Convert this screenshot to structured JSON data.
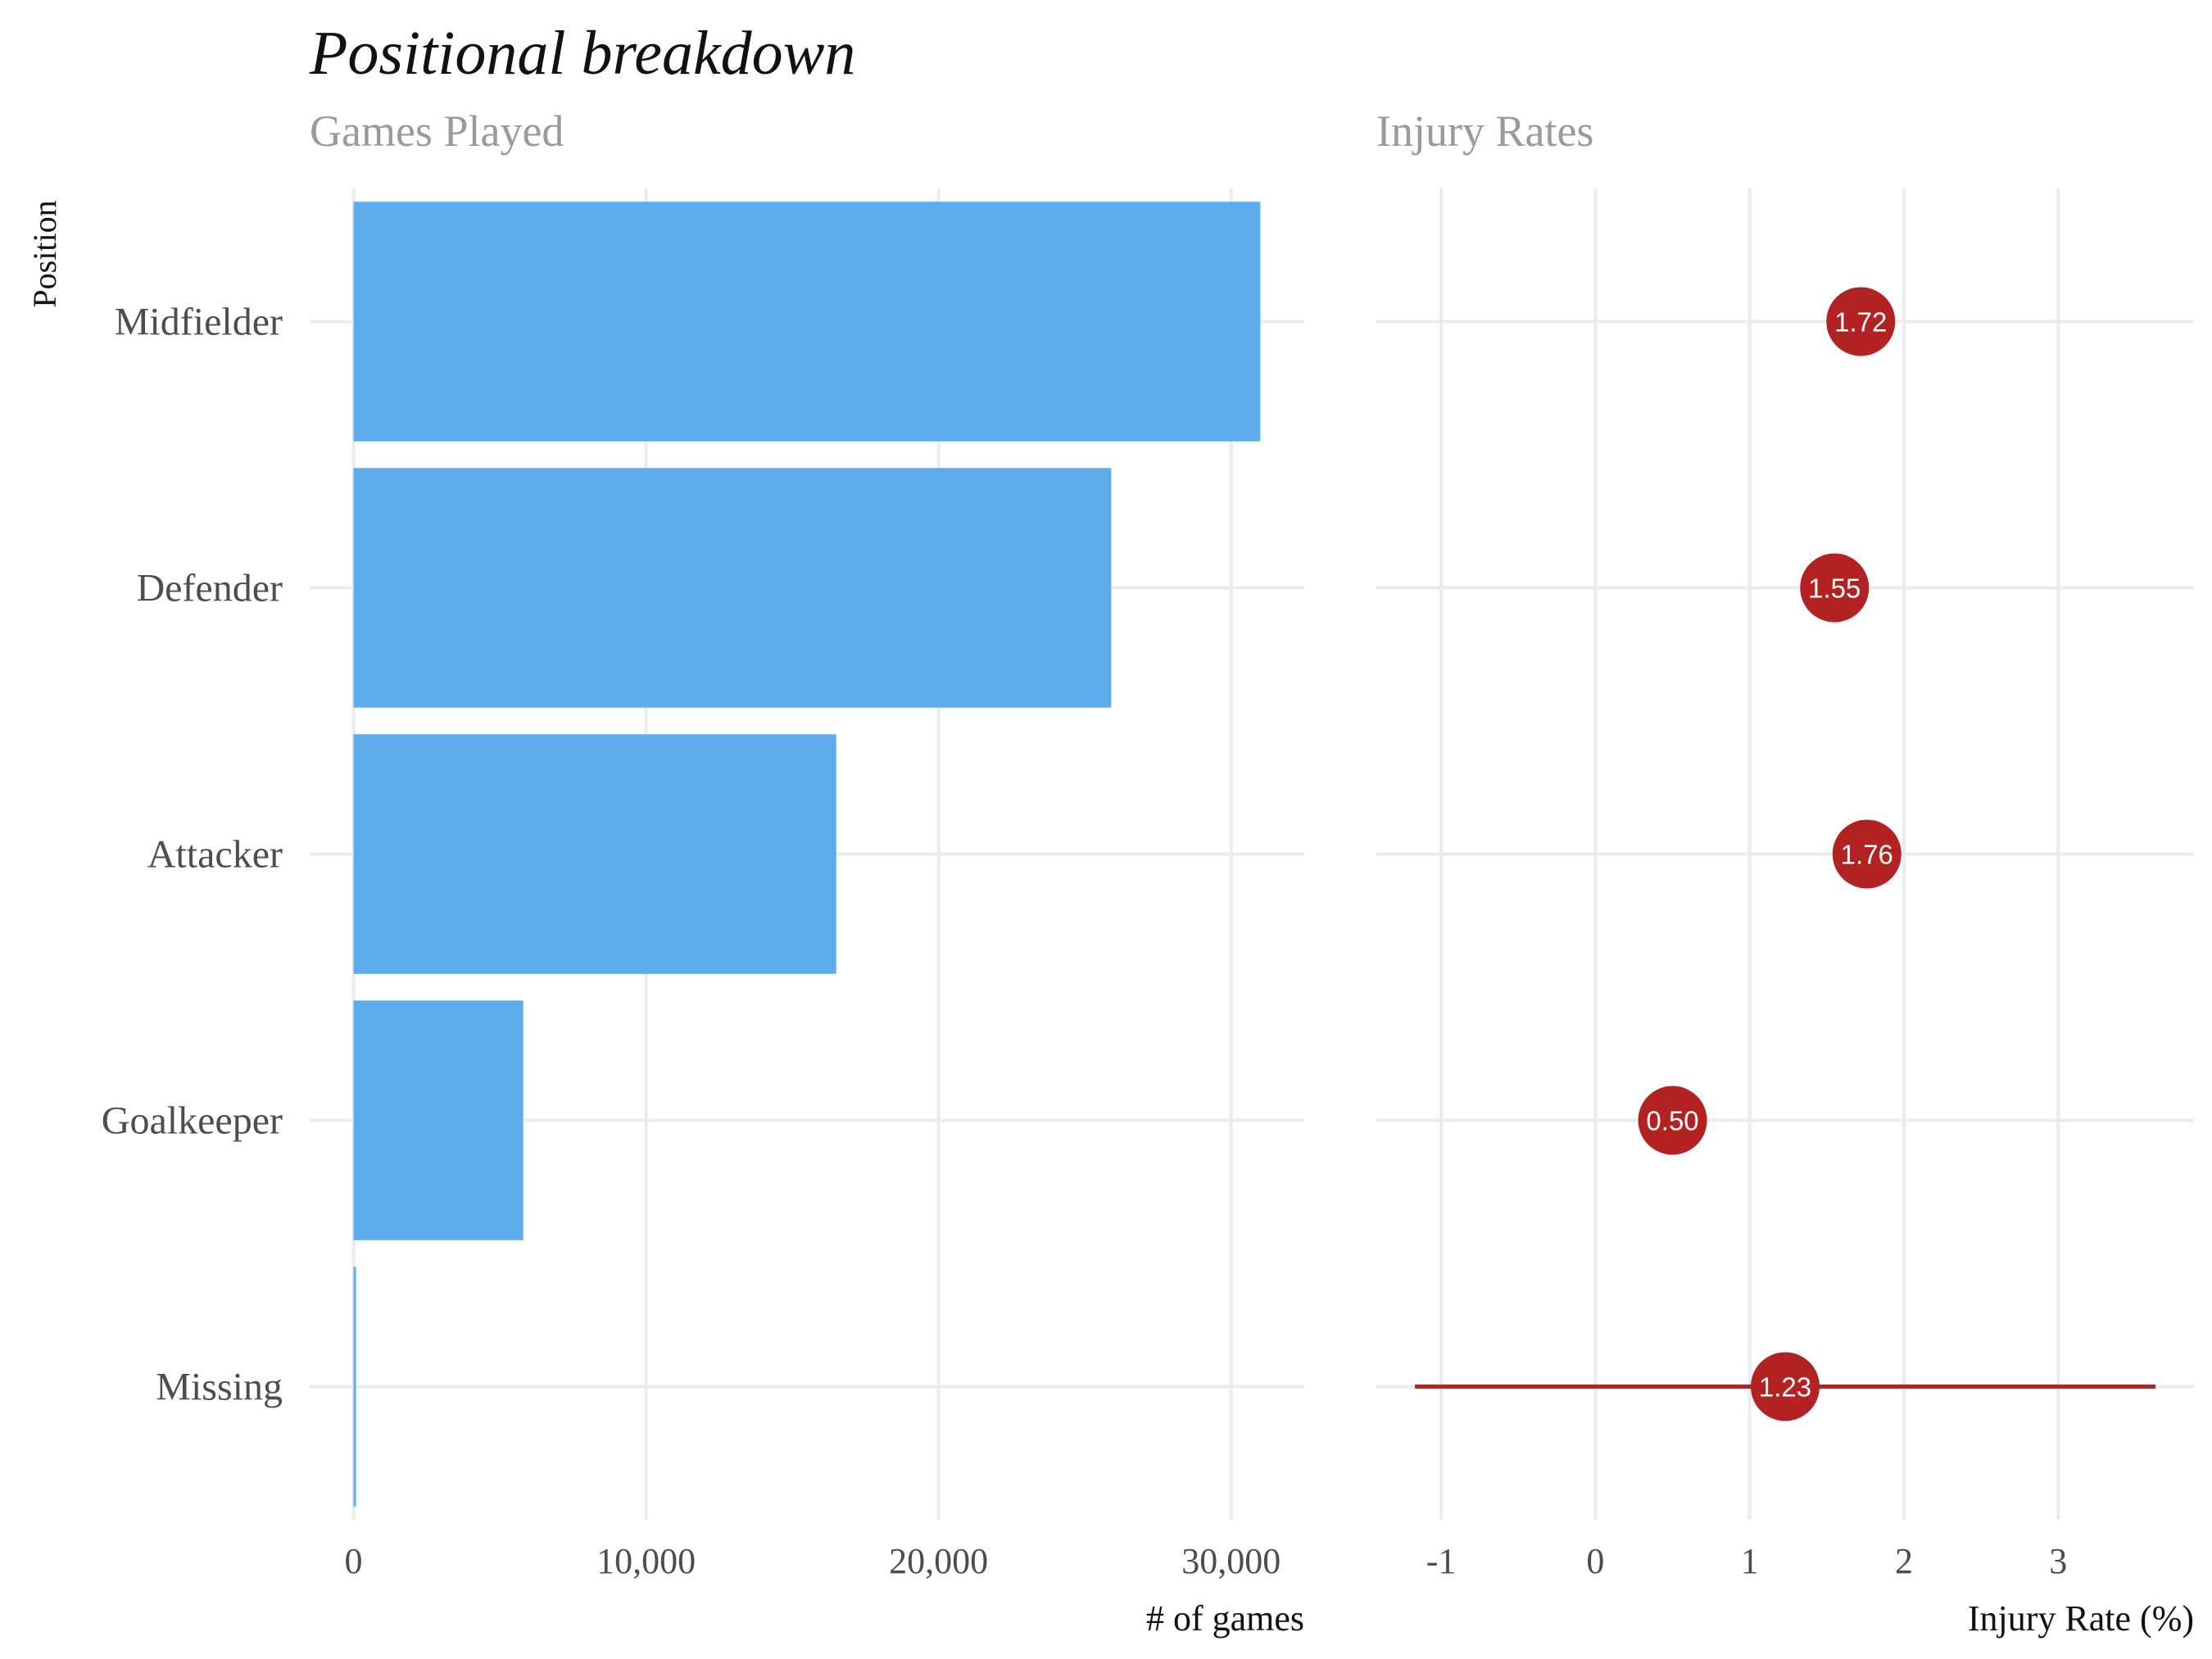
{
  "title": "Positional breakdown",
  "chart_data": [
    {
      "type": "bar",
      "orientation": "horizontal",
      "subtitle": "Games Played",
      "ylabel": "Position",
      "xlabel": "# of games",
      "categories": [
        "Midfielder",
        "Defender",
        "Attacker",
        "Goalkeeper",
        "Missing"
      ],
      "values": [
        31000,
        25900,
        16500,
        5800,
        60
      ],
      "xlim": [
        -1500,
        32500
      ],
      "xticks": [
        0,
        10000,
        20000,
        30000
      ],
      "xtick_labels": [
        "0",
        "10,000",
        "20,000",
        "30,000"
      ],
      "grid": true,
      "bar_color": "#5DADEC"
    },
    {
      "type": "scatter",
      "subtitle": "Injury Rates",
      "xlabel": "Injury Rate (%)",
      "categories": [
        "Midfielder",
        "Defender",
        "Attacker",
        "Goalkeeper",
        "Missing"
      ],
      "values": [
        1.72,
        1.55,
        1.76,
        0.5,
        1.23
      ],
      "value_labels": [
        "1.72",
        "1.55",
        "1.76",
        "0.50",
        "1.23"
      ],
      "error_bars": [
        null,
        null,
        null,
        null,
        [
          -1.17,
          3.63
        ]
      ],
      "xlim": [
        -1.42,
        3.88
      ],
      "xticks": [
        -1,
        0,
        1,
        2,
        3
      ],
      "xtick_labels": [
        "-1",
        "0",
        "1",
        "2",
        "3"
      ],
      "grid": true,
      "point_color": "#B22222"
    }
  ]
}
